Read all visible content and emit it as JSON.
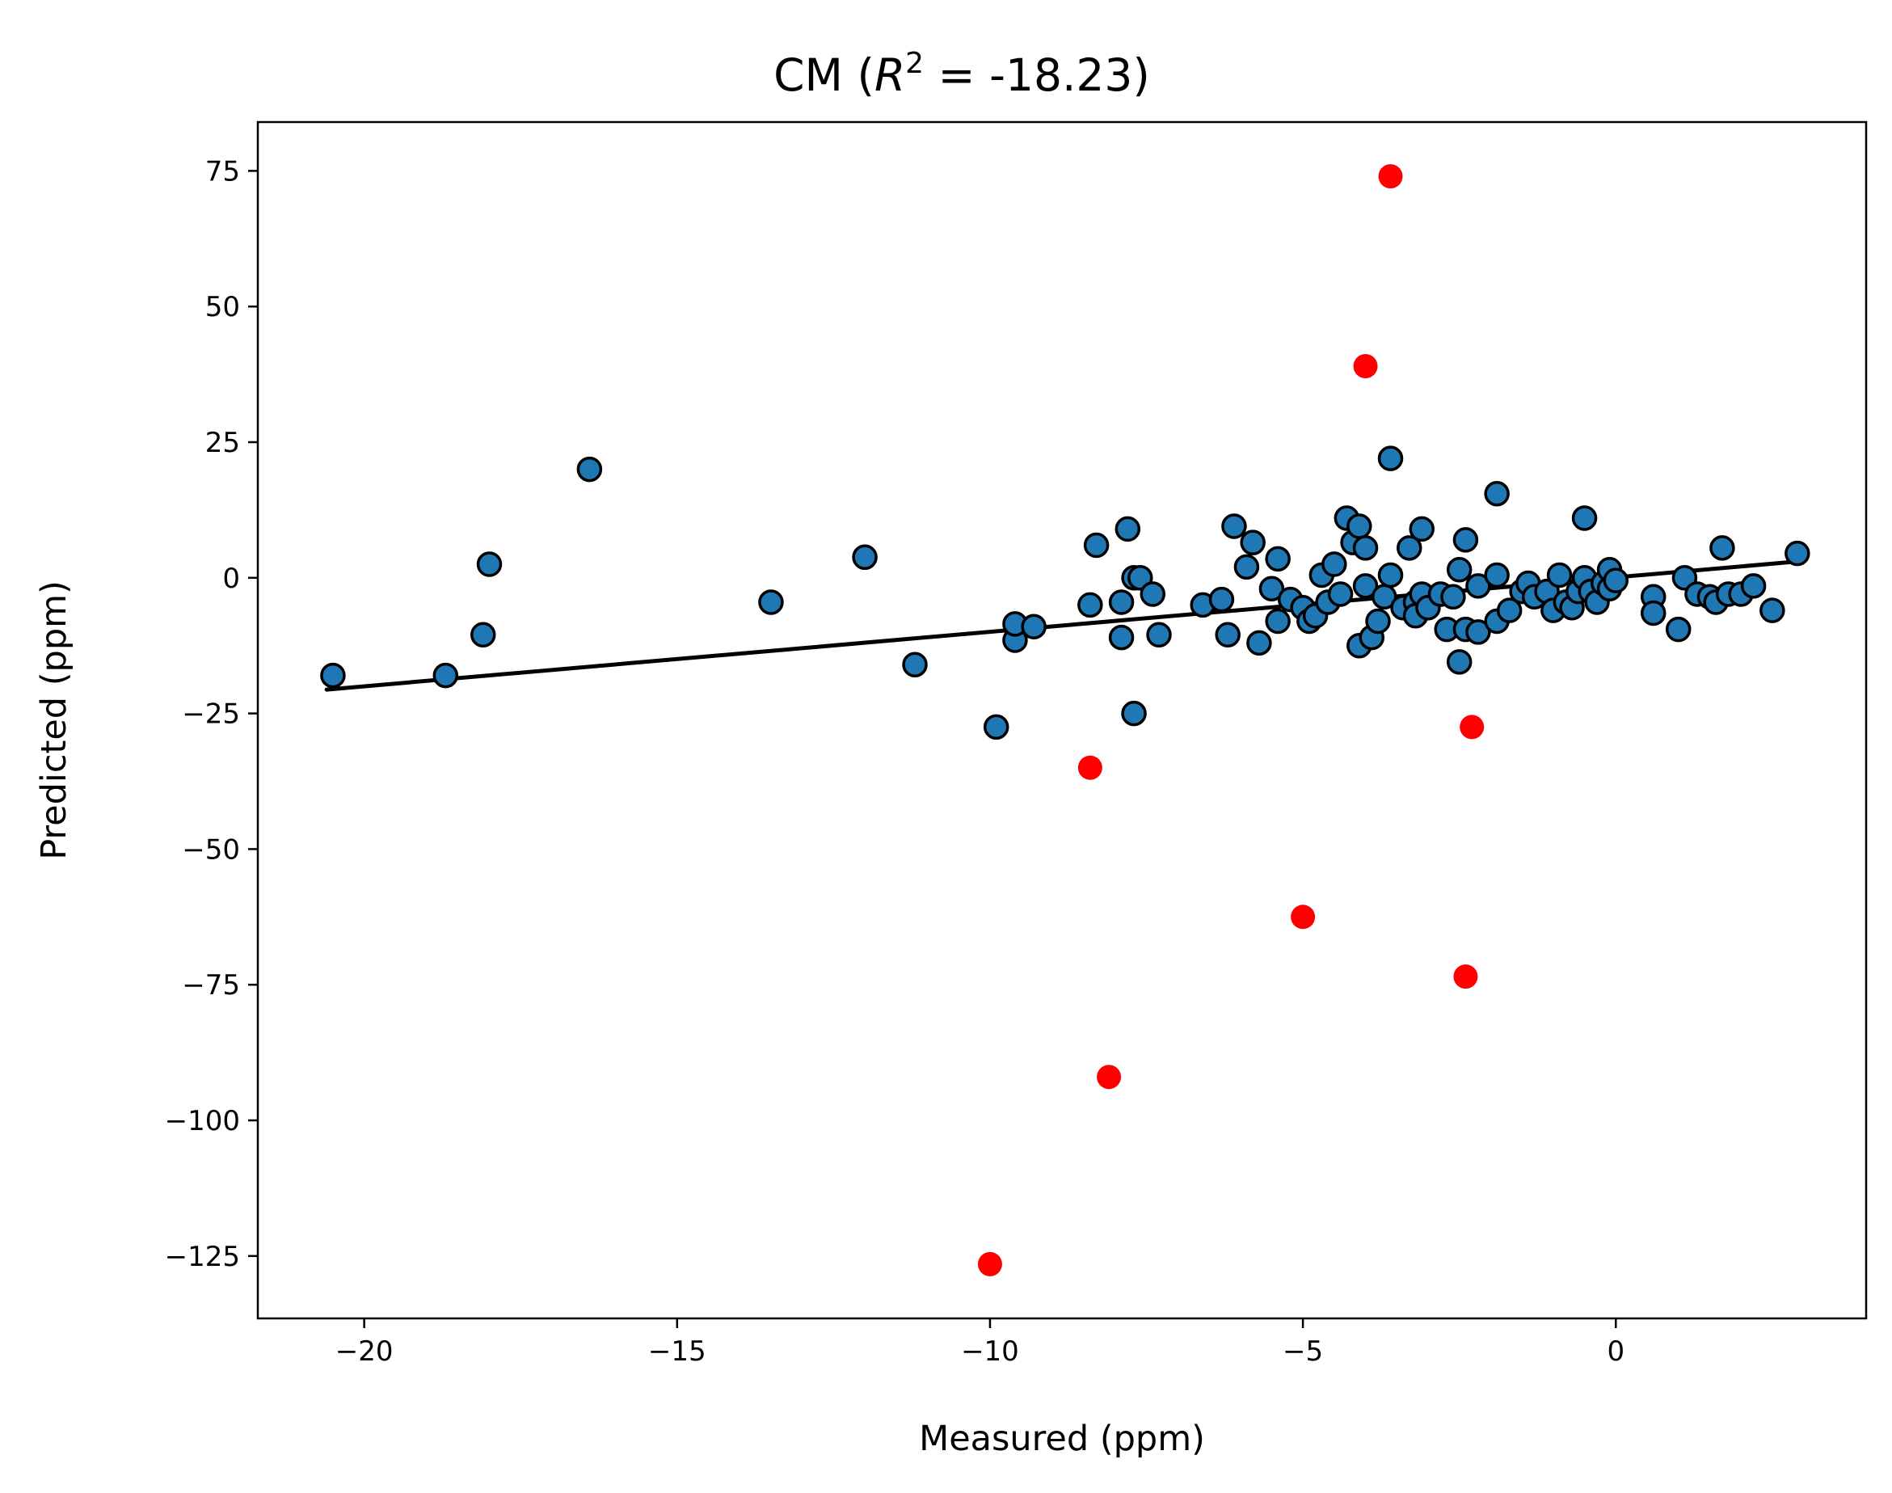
{
  "chart_data": {
    "type": "scatter",
    "title": {
      "prefix": "CM (",
      "r_symbol": "R",
      "superscript": "2",
      "suffix": " = -18.23)"
    },
    "xlabel": "Measured (ppm)",
    "ylabel": "Predicted (ppm)",
    "xlim": [
      -21.7,
      4.0
    ],
    "ylim": [
      -136.5,
      84.0
    ],
    "xticks": [
      -20,
      -15,
      -10,
      -5,
      0
    ],
    "xtick_labels": [
      "−20",
      "−15",
      "−10",
      "−5",
      "0"
    ],
    "yticks": [
      75,
      50,
      25,
      0,
      -25,
      -50,
      -75,
      -100,
      -125
    ],
    "ytick_labels": [
      "75",
      "50",
      "25",
      "0",
      "−25",
      "−50",
      "−75",
      "−100",
      "−125"
    ],
    "grid": false,
    "legend": "none",
    "colors": {
      "inlier_fill": "#1f77b4",
      "inlier_edge": "#000000",
      "outlier_fill": "#ff0000",
      "fit_line": "#000000"
    },
    "fit_line": {
      "x": [
        -20.6,
        2.9
      ],
      "y": [
        -20.6,
        3.0
      ]
    },
    "series": [
      {
        "kind": "inliers",
        "points": [
          [
            -20.5,
            -18.0
          ],
          [
            -18.7,
            -18.0
          ],
          [
            -18.1,
            -10.5
          ],
          [
            -18.0,
            2.5
          ],
          [
            -16.4,
            20.0
          ],
          [
            -13.5,
            -4.5
          ],
          [
            -12.0,
            3.8
          ],
          [
            -11.2,
            -16.0
          ],
          [
            -9.9,
            -27.5
          ],
          [
            -9.6,
            -11.5
          ],
          [
            -9.6,
            -8.5
          ],
          [
            -9.3,
            -9.0
          ],
          [
            -8.3,
            6.0
          ],
          [
            -8.4,
            -5.0
          ],
          [
            -7.9,
            -4.5
          ],
          [
            -7.9,
            -11.0
          ],
          [
            -7.8,
            9.0
          ],
          [
            -7.7,
            0.0
          ],
          [
            -7.6,
            0.0
          ],
          [
            -7.4,
            -3.0
          ],
          [
            -7.3,
            -10.5
          ],
          [
            -7.7,
            -25.0
          ],
          [
            -6.6,
            -5.0
          ],
          [
            -6.3,
            -4.0
          ],
          [
            -6.2,
            -10.5
          ],
          [
            -6.1,
            9.5
          ],
          [
            -5.9,
            2.0
          ],
          [
            -5.8,
            6.5
          ],
          [
            -5.7,
            -12.0
          ],
          [
            -5.5,
            -2.0
          ],
          [
            -5.4,
            -8.0
          ],
          [
            -5.4,
            3.5
          ],
          [
            -5.2,
            -4.0
          ],
          [
            -5.0,
            -5.5
          ],
          [
            -4.9,
            -8.0
          ],
          [
            -4.8,
            -7.0
          ],
          [
            -4.7,
            0.5
          ],
          [
            -4.6,
            -4.5
          ],
          [
            -4.5,
            2.5
          ],
          [
            -4.4,
            -3.0
          ],
          [
            -4.3,
            11.0
          ],
          [
            -4.2,
            6.5
          ],
          [
            -4.1,
            9.5
          ],
          [
            -4.0,
            -1.5
          ],
          [
            -4.0,
            5.5
          ],
          [
            -4.1,
            -12.5
          ],
          [
            -3.9,
            -11.0
          ],
          [
            -3.8,
            -8.0
          ],
          [
            -3.7,
            -3.5
          ],
          [
            -3.6,
            0.5
          ],
          [
            -3.6,
            22.0
          ],
          [
            -3.4,
            -5.5
          ],
          [
            -3.3,
            5.5
          ],
          [
            -3.2,
            -4.5
          ],
          [
            -3.2,
            -7.0
          ],
          [
            -3.1,
            -3.0
          ],
          [
            -3.1,
            9.0
          ],
          [
            -3.0,
            -5.5
          ],
          [
            -2.8,
            -3.0
          ],
          [
            -2.7,
            -9.5
          ],
          [
            -2.6,
            -3.5
          ],
          [
            -2.5,
            1.5
          ],
          [
            -2.4,
            -9.5
          ],
          [
            -2.5,
            -15.5
          ],
          [
            -2.4,
            7.0
          ],
          [
            -2.2,
            -1.5
          ],
          [
            -2.2,
            -10.0
          ],
          [
            -1.9,
            0.5
          ],
          [
            -1.9,
            15.5
          ],
          [
            -1.9,
            -8.0
          ],
          [
            -1.7,
            -6.0
          ],
          [
            -1.5,
            -2.5
          ],
          [
            -1.4,
            -1.0
          ],
          [
            -1.3,
            -3.5
          ],
          [
            -1.1,
            -2.5
          ],
          [
            -1.0,
            -6.0
          ],
          [
            -0.9,
            0.5
          ],
          [
            -0.8,
            -4.5
          ],
          [
            -0.7,
            -5.5
          ],
          [
            -0.6,
            -2.5
          ],
          [
            -0.5,
            0.0
          ],
          [
            -0.5,
            11.0
          ],
          [
            -0.4,
            -2.5
          ],
          [
            -0.3,
            -4.5
          ],
          [
            -0.2,
            -1.0
          ],
          [
            -0.1,
            1.5
          ],
          [
            -0.1,
            -2.0
          ],
          [
            0.0,
            -0.5
          ],
          [
            0.6,
            -3.5
          ],
          [
            0.6,
            -6.5
          ],
          [
            1.0,
            -9.5
          ],
          [
            1.1,
            0.0
          ],
          [
            1.3,
            -3.0
          ],
          [
            1.5,
            -3.5
          ],
          [
            1.6,
            -4.5
          ],
          [
            1.7,
            5.5
          ],
          [
            1.8,
            -3.0
          ],
          [
            2.0,
            -3.0
          ],
          [
            2.2,
            -1.5
          ],
          [
            2.5,
            -6.0
          ],
          [
            2.9,
            4.5
          ]
        ]
      },
      {
        "kind": "outliers",
        "points": [
          [
            -3.6,
            74.0
          ],
          [
            -4.0,
            39.0
          ],
          [
            -8.4,
            -35.0
          ],
          [
            -2.3,
            -27.5
          ],
          [
            -5.0,
            -62.5
          ],
          [
            -2.4,
            -73.5
          ],
          [
            -8.1,
            -92.0
          ],
          [
            -10.0,
            -126.5
          ]
        ]
      }
    ]
  }
}
